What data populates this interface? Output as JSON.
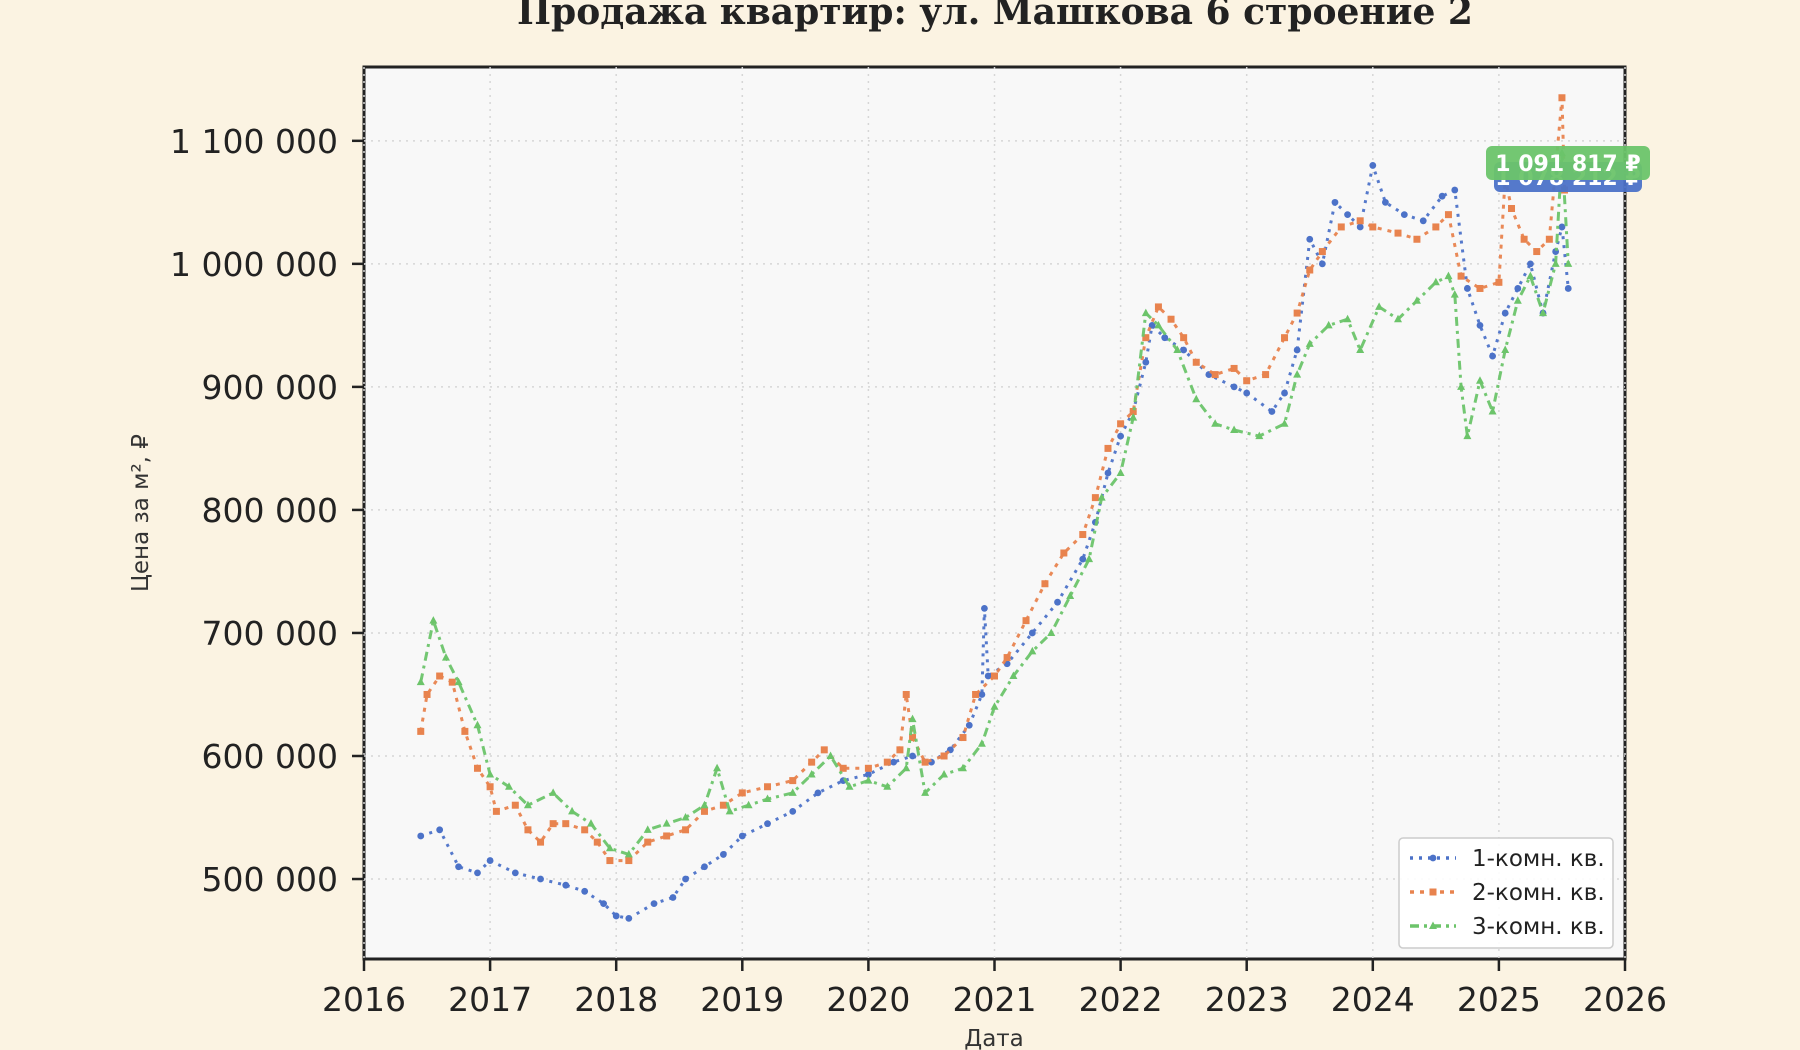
{
  "chart_data": {
    "type": "line",
    "title": "Продажа квартир: ул. Машкова 6 строение 2",
    "xlabel": "Дата",
    "ylabel": "Цена за м², ₽",
    "xlim": [
      2016,
      2026
    ],
    "ylim": [
      435000,
      1160000
    ],
    "x_ticks": [
      {
        "value": 2016,
        "label": "2016"
      },
      {
        "value": 2017,
        "label": "2017"
      },
      {
        "value": 2018,
        "label": "2018"
      },
      {
        "value": 2019,
        "label": "2019"
      },
      {
        "value": 2020,
        "label": "2020"
      },
      {
        "value": 2021,
        "label": "2021"
      },
      {
        "value": 2022,
        "label": "2022"
      },
      {
        "value": 2023,
        "label": "2023"
      },
      {
        "value": 2024,
        "label": "2024"
      },
      {
        "value": 2025,
        "label": "2025"
      },
      {
        "value": 2026,
        "label": "2026"
      }
    ],
    "y_ticks": [
      {
        "value": 500000,
        "label": "500 000"
      },
      {
        "value": 600000,
        "label": "600 000"
      },
      {
        "value": 700000,
        "label": "700 000"
      },
      {
        "value": 800000,
        "label": "800 000"
      },
      {
        "value": 900000,
        "label": "900 000"
      },
      {
        "value": 1000000,
        "label": "1 000 000"
      },
      {
        "value": 1100000,
        "label": "1 100 000"
      }
    ],
    "grid": true,
    "legend_position": "bottom-right",
    "colors": {
      "1k": "#4c72c8",
      "2k": "#e8834e",
      "3k": "#6cc46a"
    },
    "series": [
      {
        "key": "1k",
        "name": "1-комн. кв.",
        "color": "#4c72c8",
        "marker": "circle",
        "points": [
          [
            2016.45,
            535000
          ],
          [
            2016.6,
            540000
          ],
          [
            2016.75,
            510000
          ],
          [
            2016.9,
            505000
          ],
          [
            2017.0,
            515000
          ],
          [
            2017.2,
            505000
          ],
          [
            2017.4,
            500000
          ],
          [
            2017.6,
            495000
          ],
          [
            2017.75,
            490000
          ],
          [
            2017.9,
            480000
          ],
          [
            2018.0,
            470000
          ],
          [
            2018.1,
            468000
          ],
          [
            2018.3,
            480000
          ],
          [
            2018.45,
            485000
          ],
          [
            2018.55,
            500000
          ],
          [
            2018.7,
            510000
          ],
          [
            2018.85,
            520000
          ],
          [
            2019.0,
            535000
          ],
          [
            2019.2,
            545000
          ],
          [
            2019.4,
            555000
          ],
          [
            2019.6,
            570000
          ],
          [
            2019.8,
            580000
          ],
          [
            2020.0,
            585000
          ],
          [
            2020.2,
            595000
          ],
          [
            2020.35,
            600000
          ],
          [
            2020.5,
            595000
          ],
          [
            2020.65,
            605000
          ],
          [
            2020.8,
            625000
          ],
          [
            2020.9,
            650000
          ],
          [
            2020.92,
            720000
          ],
          [
            2020.95,
            665000
          ],
          [
            2021.1,
            675000
          ],
          [
            2021.3,
            700000
          ],
          [
            2021.5,
            725000
          ],
          [
            2021.7,
            760000
          ],
          [
            2021.8,
            790000
          ],
          [
            2021.9,
            830000
          ],
          [
            2022.0,
            860000
          ],
          [
            2022.1,
            880000
          ],
          [
            2022.2,
            920000
          ],
          [
            2022.25,
            950000
          ],
          [
            2022.35,
            940000
          ],
          [
            2022.5,
            930000
          ],
          [
            2022.7,
            910000
          ],
          [
            2022.9,
            900000
          ],
          [
            2023.0,
            895000
          ],
          [
            2023.2,
            880000
          ],
          [
            2023.3,
            895000
          ],
          [
            2023.4,
            930000
          ],
          [
            2023.5,
            1020000
          ],
          [
            2023.6,
            1000000
          ],
          [
            2023.7,
            1050000
          ],
          [
            2023.8,
            1040000
          ],
          [
            2023.9,
            1030000
          ],
          [
            2024.0,
            1080000
          ],
          [
            2024.1,
            1050000
          ],
          [
            2024.25,
            1040000
          ],
          [
            2024.4,
            1035000
          ],
          [
            2024.55,
            1055000
          ],
          [
            2024.65,
            1060000
          ],
          [
            2024.75,
            980000
          ],
          [
            2024.85,
            950000
          ],
          [
            2024.95,
            925000
          ],
          [
            2025.05,
            960000
          ],
          [
            2025.15,
            980000
          ],
          [
            2025.25,
            1000000
          ],
          [
            2025.35,
            960000
          ],
          [
            2025.45,
            1010000
          ],
          [
            2025.5,
            1030000
          ],
          [
            2025.55,
            980000
          ]
        ]
      },
      {
        "key": "2k",
        "name": "2-комн. кв.",
        "color": "#e8834e",
        "marker": "square",
        "points": [
          [
            2016.45,
            620000
          ],
          [
            2016.5,
            650000
          ],
          [
            2016.6,
            665000
          ],
          [
            2016.7,
            660000
          ],
          [
            2016.8,
            620000
          ],
          [
            2016.9,
            590000
          ],
          [
            2017.0,
            575000
          ],
          [
            2017.05,
            555000
          ],
          [
            2017.2,
            560000
          ],
          [
            2017.3,
            540000
          ],
          [
            2017.4,
            530000
          ],
          [
            2017.5,
            545000
          ],
          [
            2017.6,
            545000
          ],
          [
            2017.75,
            540000
          ],
          [
            2017.85,
            530000
          ],
          [
            2017.95,
            515000
          ],
          [
            2018.1,
            515000
          ],
          [
            2018.25,
            530000
          ],
          [
            2018.4,
            535000
          ],
          [
            2018.55,
            540000
          ],
          [
            2018.7,
            555000
          ],
          [
            2018.85,
            560000
          ],
          [
            2019.0,
            570000
          ],
          [
            2019.2,
            575000
          ],
          [
            2019.4,
            580000
          ],
          [
            2019.55,
            595000
          ],
          [
            2019.65,
            605000
          ],
          [
            2019.8,
            590000
          ],
          [
            2020.0,
            590000
          ],
          [
            2020.15,
            595000
          ],
          [
            2020.25,
            605000
          ],
          [
            2020.3,
            650000
          ],
          [
            2020.35,
            615000
          ],
          [
            2020.45,
            595000
          ],
          [
            2020.6,
            600000
          ],
          [
            2020.75,
            615000
          ],
          [
            2020.85,
            650000
          ],
          [
            2021.0,
            665000
          ],
          [
            2021.1,
            680000
          ],
          [
            2021.25,
            710000
          ],
          [
            2021.4,
            740000
          ],
          [
            2021.55,
            765000
          ],
          [
            2021.7,
            780000
          ],
          [
            2021.8,
            810000
          ],
          [
            2021.9,
            850000
          ],
          [
            2022.0,
            870000
          ],
          [
            2022.1,
            880000
          ],
          [
            2022.2,
            940000
          ],
          [
            2022.3,
            965000
          ],
          [
            2022.4,
            955000
          ],
          [
            2022.5,
            940000
          ],
          [
            2022.6,
            920000
          ],
          [
            2022.75,
            910000
          ],
          [
            2022.9,
            915000
          ],
          [
            2023.0,
            905000
          ],
          [
            2023.15,
            910000
          ],
          [
            2023.3,
            940000
          ],
          [
            2023.4,
            960000
          ],
          [
            2023.5,
            995000
          ],
          [
            2023.6,
            1010000
          ],
          [
            2023.75,
            1030000
          ],
          [
            2023.9,
            1035000
          ],
          [
            2024.0,
            1030000
          ],
          [
            2024.2,
            1025000
          ],
          [
            2024.35,
            1020000
          ],
          [
            2024.5,
            1030000
          ],
          [
            2024.6,
            1040000
          ],
          [
            2024.7,
            990000
          ],
          [
            2024.85,
            980000
          ],
          [
            2025.0,
            985000
          ],
          [
            2025.05,
            1070000
          ],
          [
            2025.1,
            1045000
          ],
          [
            2025.2,
            1020000
          ],
          [
            2025.3,
            1010000
          ],
          [
            2025.4,
            1020000
          ],
          [
            2025.5,
            1135000
          ],
          [
            2025.52,
            1060000
          ]
        ]
      },
      {
        "key": "3k",
        "name": "3-комн. кв.",
        "color": "#6cc46a",
        "marker": "triangle",
        "points": [
          [
            2016.45,
            660000
          ],
          [
            2016.55,
            710000
          ],
          [
            2016.65,
            680000
          ],
          [
            2016.75,
            660000
          ],
          [
            2016.9,
            625000
          ],
          [
            2017.0,
            585000
          ],
          [
            2017.15,
            575000
          ],
          [
            2017.3,
            560000
          ],
          [
            2017.5,
            570000
          ],
          [
            2017.65,
            555000
          ],
          [
            2017.8,
            545000
          ],
          [
            2017.95,
            525000
          ],
          [
            2018.1,
            520000
          ],
          [
            2018.25,
            540000
          ],
          [
            2018.4,
            545000
          ],
          [
            2018.55,
            550000
          ],
          [
            2018.7,
            560000
          ],
          [
            2018.8,
            590000
          ],
          [
            2018.9,
            555000
          ],
          [
            2019.05,
            560000
          ],
          [
            2019.2,
            565000
          ],
          [
            2019.4,
            570000
          ],
          [
            2019.55,
            585000
          ],
          [
            2019.7,
            600000
          ],
          [
            2019.85,
            575000
          ],
          [
            2020.0,
            580000
          ],
          [
            2020.15,
            575000
          ],
          [
            2020.3,
            590000
          ],
          [
            2020.35,
            630000
          ],
          [
            2020.45,
            570000
          ],
          [
            2020.6,
            585000
          ],
          [
            2020.75,
            590000
          ],
          [
            2020.9,
            610000
          ],
          [
            2021.0,
            640000
          ],
          [
            2021.15,
            665000
          ],
          [
            2021.3,
            685000
          ],
          [
            2021.45,
            700000
          ],
          [
            2021.6,
            730000
          ],
          [
            2021.75,
            760000
          ],
          [
            2021.85,
            810000
          ],
          [
            2022.0,
            830000
          ],
          [
            2022.1,
            875000
          ],
          [
            2022.2,
            960000
          ],
          [
            2022.3,
            950000
          ],
          [
            2022.45,
            930000
          ],
          [
            2022.6,
            890000
          ],
          [
            2022.75,
            870000
          ],
          [
            2022.9,
            865000
          ],
          [
            2023.1,
            860000
          ],
          [
            2023.3,
            870000
          ],
          [
            2023.4,
            910000
          ],
          [
            2023.5,
            935000
          ],
          [
            2023.65,
            950000
          ],
          [
            2023.8,
            955000
          ],
          [
            2023.9,
            930000
          ],
          [
            2024.05,
            965000
          ],
          [
            2024.2,
            955000
          ],
          [
            2024.35,
            970000
          ],
          [
            2024.5,
            985000
          ],
          [
            2024.6,
            990000
          ],
          [
            2024.65,
            975000
          ],
          [
            2024.7,
            900000
          ],
          [
            2024.75,
            860000
          ],
          [
            2024.85,
            905000
          ],
          [
            2024.95,
            880000
          ],
          [
            2025.05,
            930000
          ],
          [
            2025.15,
            970000
          ],
          [
            2025.25,
            990000
          ],
          [
            2025.35,
            960000
          ],
          [
            2025.45,
            1000000
          ],
          [
            2025.5,
            1090000
          ],
          [
            2025.55,
            1000000
          ]
        ]
      }
    ],
    "annotations": [
      {
        "series": "1k",
        "x": 2025.55,
        "y": 1080000,
        "text": "1 078 212 ₽",
        "color": "#4c72c8"
      },
      {
        "series": "3k",
        "x": 2025.5,
        "y": 1091817,
        "text": "1 091 817 ₽",
        "color": "#6cc46a"
      }
    ]
  }
}
